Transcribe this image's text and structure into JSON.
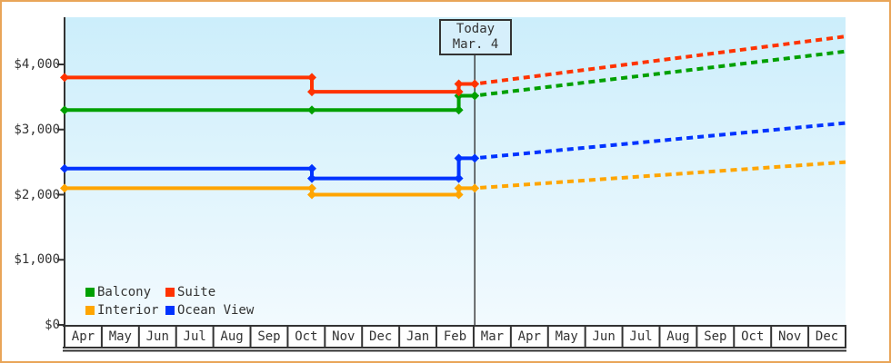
{
  "chart_data": {
    "type": "line",
    "title": "",
    "y_axis": {
      "tick_labels": [
        "$0",
        "$1,000",
        "$2,000",
        "$3,000",
        "$4,000"
      ],
      "tick_values": [
        0,
        1000,
        2000,
        3000,
        4000
      ],
      "max_value": 4725,
      "grid": false
    },
    "x_axis": {
      "month_labels": [
        "Apr",
        "May",
        "Jun",
        "Jul",
        "Aug",
        "Sep",
        "Oct",
        "Nov",
        "Dec",
        "Jan",
        "Feb",
        "Mar",
        "Apr",
        "May",
        "Jun",
        "Jul",
        "Aug",
        "Sep",
        "Oct",
        "Nov",
        "Dec"
      ]
    },
    "today": {
      "line1": "Today",
      "line2": "Mar. 4",
      "month_fraction": 11.03
    },
    "events_month_fraction": {
      "start": 0,
      "price_change_1": 6.65,
      "price_change_2": 10.6,
      "end": 21
    },
    "series": [
      {
        "name": "Balcony",
        "color": "#00a000",
        "prices": {
          "start": 3300,
          "after_change_1": 3300,
          "after_change_2": 3520
        },
        "forecast_end_price": 4200
      },
      {
        "name": "Suite",
        "color": "#ff3300",
        "prices": {
          "start": 3800,
          "after_change_1": 3580,
          "after_change_2": 3700
        },
        "forecast_end_price": 4430
      },
      {
        "name": "Interior",
        "color": "#ffa500",
        "prices": {
          "start": 2100,
          "after_change_1": 2000,
          "after_change_2": 2100
        },
        "forecast_end_price": 2500
      },
      {
        "name": "Ocean View",
        "color": "#0033ff",
        "prices": {
          "start": 2400,
          "after_change_1": 2250,
          "after_change_2": 2560
        },
        "forecast_end_price": 3100
      }
    ],
    "line_styles": {
      "history": "solid",
      "forecast": "dashed"
    },
    "colors": {
      "frame_border": "#e9a558",
      "axis_and_text": "#333333",
      "plot_bg_top": "#cceefb",
      "plot_bg_bottom": "#f2fafe",
      "today_box_bg": "#d6effb"
    }
  }
}
